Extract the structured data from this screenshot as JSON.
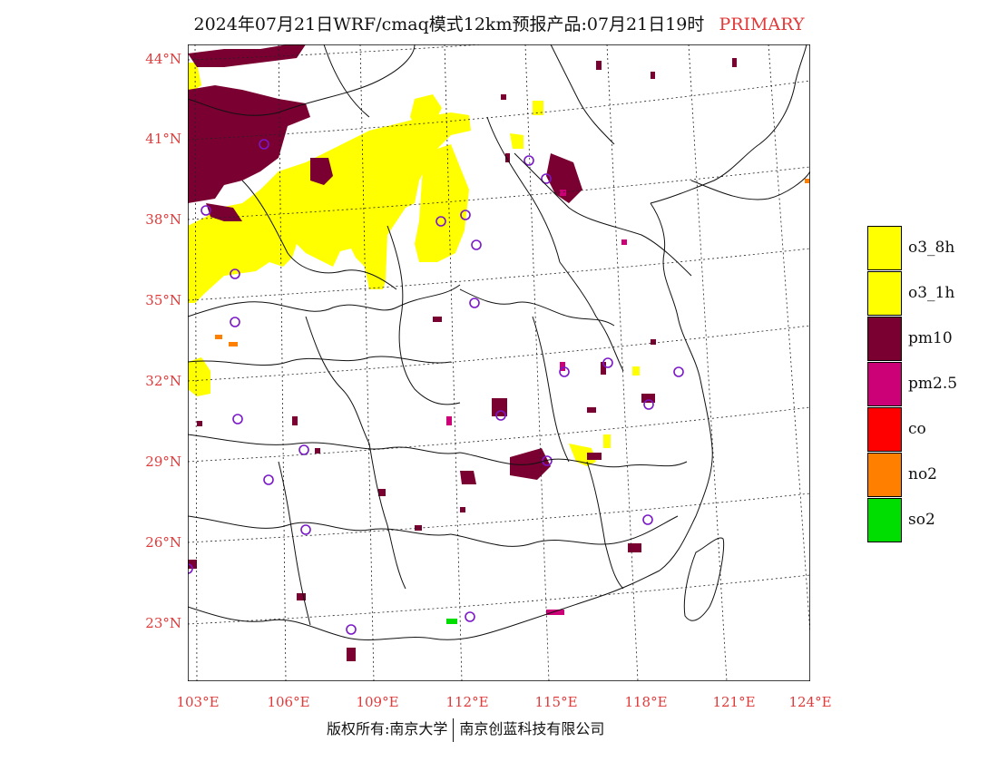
{
  "title": {
    "main": "2024年07月21日WRF/cmaq模式12km预报产品:07月21日19时",
    "tag": "PRIMARY"
  },
  "lat_labels": [
    "44°N",
    "41°N",
    "38°N",
    "35°N",
    "32°N",
    "29°N",
    "26°N",
    "23°N"
  ],
  "lon_labels": [
    "103°E",
    "106°E",
    "109°E",
    "112°E",
    "115°E",
    "118°E",
    "121°E",
    "124°E"
  ],
  "legend": [
    {
      "label": "o3_8h",
      "color": "#ffff00"
    },
    {
      "label": "o3_1h",
      "color": "#ffff00"
    },
    {
      "label": "pm10",
      "color": "#7b0032"
    },
    {
      "label": "pm2.5",
      "color": "#cc0077"
    },
    {
      "label": "co",
      "color": "#ff0000"
    },
    {
      "label": "no2",
      "color": "#ff7f00"
    },
    {
      "label": "so2",
      "color": "#00dd00"
    }
  ],
  "footer": {
    "left": "版权所有:南京大学",
    "right": "南京创蓝科技有限公司"
  }
}
